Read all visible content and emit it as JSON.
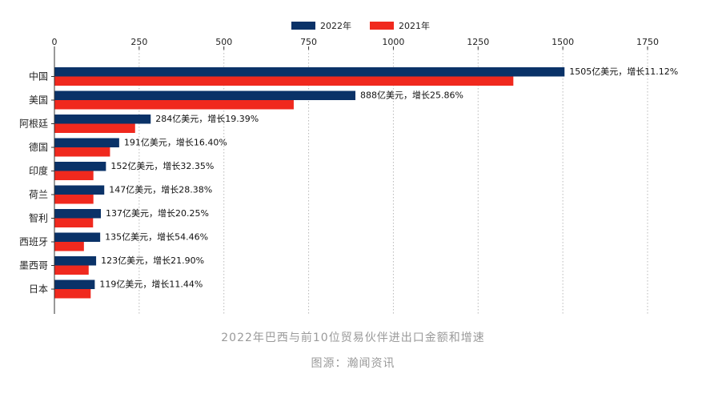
{
  "colors": {
    "series_2022": "#0a3268",
    "series_2021": "#f0291e",
    "grid": "#b8b8b8",
    "axis": "#333333",
    "caption": "#9a9a9a"
  },
  "caption": {
    "title": "2022年巴西与前10位贸易伙伴进出口金额和增速",
    "source": "图源：瀚闻资讯"
  },
  "chart_data": {
    "type": "bar",
    "orientation": "horizontal",
    "title": "",
    "xlabel": "",
    "ylabel": "",
    "xlim": [
      0,
      1750
    ],
    "x_ticks": [
      "0",
      "250",
      "500",
      "750",
      "1000",
      "1250",
      "1500",
      "1750"
    ],
    "x_tick_values": [
      0,
      250,
      500,
      750,
      1000,
      1250,
      1500,
      1750
    ],
    "x_axis_position": "top",
    "grid": "vertical dotted",
    "legend_position": "top-center",
    "categories": [
      "中国",
      "美国",
      "阿根廷",
      "德国",
      "印度",
      "荷兰",
      "智利",
      "西班牙",
      "墨西哥",
      "日本"
    ],
    "series": [
      {
        "name": "2022年",
        "color": "#0a3268",
        "values": [
          1505,
          888,
          284,
          191,
          152,
          147,
          137,
          135,
          123,
          119
        ]
      },
      {
        "name": "2021年",
        "color": "#f0291e",
        "values": [
          1354,
          706,
          238,
          164,
          115,
          115,
          114,
          87,
          101,
          107
        ]
      }
    ],
    "data_labels": [
      "1505亿美元，增长11.12%",
      "888亿美元，增长25.86%",
      "284亿美元，增长19.39%",
      "191亿美元，增长16.40%",
      "152亿美元，增长32.35%",
      "147亿美元，增长28.38%",
      "137亿美元，增长20.25%",
      "135亿美元，增长54.46%",
      "123亿美元，增长21.90%",
      "119亿美元，增长11.44%"
    ]
  }
}
